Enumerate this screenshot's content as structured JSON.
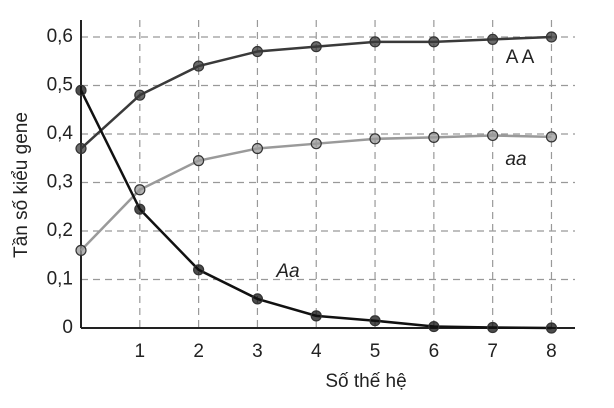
{
  "chart_data": {
    "type": "line",
    "x_label": "Số thế hệ",
    "y_label": "Tần số kiểu gene",
    "x": [
      0,
      1,
      2,
      3,
      4,
      5,
      6,
      7,
      8
    ],
    "series": [
      {
        "name": "A A",
        "color": "#3a3a3a",
        "values": [
          0.37,
          0.48,
          0.54,
          0.57,
          0.58,
          0.59,
          0.59,
          0.595,
          0.6
        ]
      },
      {
        "name": "aa",
        "color": "#9a9a9a",
        "values": [
          0.16,
          0.285,
          0.345,
          0.37,
          0.38,
          0.39,
          0.393,
          0.397,
          0.394
        ]
      },
      {
        "name": "Aa",
        "color": "#111111",
        "values": [
          0.49,
          0.245,
          0.12,
          0.06,
          0.025,
          0.015,
          0.003,
          0.001,
          0
        ]
      }
    ],
    "xlim": [
      0,
      8.4
    ],
    "xticks": [
      1,
      2,
      3,
      4,
      5,
      6,
      7,
      8
    ],
    "ylim": [
      0,
      0.635
    ],
    "yticks": [
      0,
      {
        "value": 0.1,
        "label": "0,1"
      },
      {
        "value": 0.2,
        "label": "0,2"
      },
      {
        "value": 0.3,
        "label": "0,3"
      },
      {
        "value": 0.4,
        "label": "0,4"
      },
      {
        "value": 0.5,
        "label": "0,5"
      },
      {
        "value": 0.6,
        "label": "0,6"
      }
    ],
    "grid": true
  }
}
